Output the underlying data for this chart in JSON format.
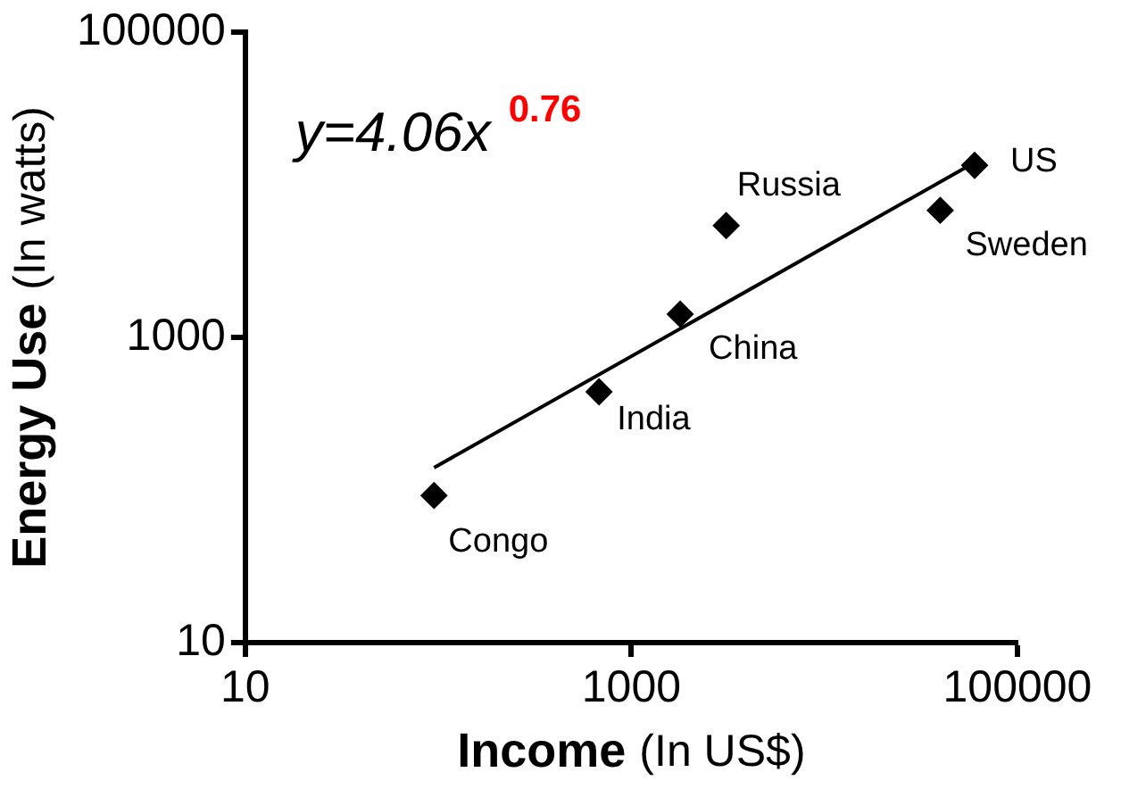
{
  "chart_data": {
    "type": "scatter",
    "xlabel": "Income (In US$)",
    "ylabel": "Energy Use (In watts)",
    "log": "xy",
    "xlim": [
      10,
      100000
    ],
    "ylim": [
      10,
      100000
    ],
    "xticks": [
      10,
      1000,
      100000
    ],
    "yticks": [
      10,
      1000,
      100000
    ],
    "grid": false,
    "legend": false,
    "marker": "diamond",
    "series": [
      {
        "color": "#000000",
        "x": [
          95,
          680,
          1790,
          3100,
          39800,
          60000
        ],
        "values": [
          92,
          440,
          1420,
          5400,
          6800,
          13400
        ]
      },
      {
        "type": "line",
        "color": "#000000",
        "marker": "none",
        "line_style": "solid",
        "x": [
          95,
          60000
        ],
        "values": [
          140,
          14000
        ]
      }
    ],
    "annotations": [
      "y=4.06x$^{0.76}$",
      {
        "text": "Congo",
        "x": 95,
        "y": 92
      },
      {
        "text": "India",
        "x": 680,
        "y": 440
      },
      {
        "text": "China",
        "x": 1790,
        "y": 1420
      },
      {
        "text": "Russia",
        "x": 3100,
        "y": 5400
      },
      {
        "text": "Sweden",
        "x": 39800,
        "y": 6800
      },
      {
        "text": "US",
        "x": 60000,
        "y": 13400
      }
    ]
  }
}
